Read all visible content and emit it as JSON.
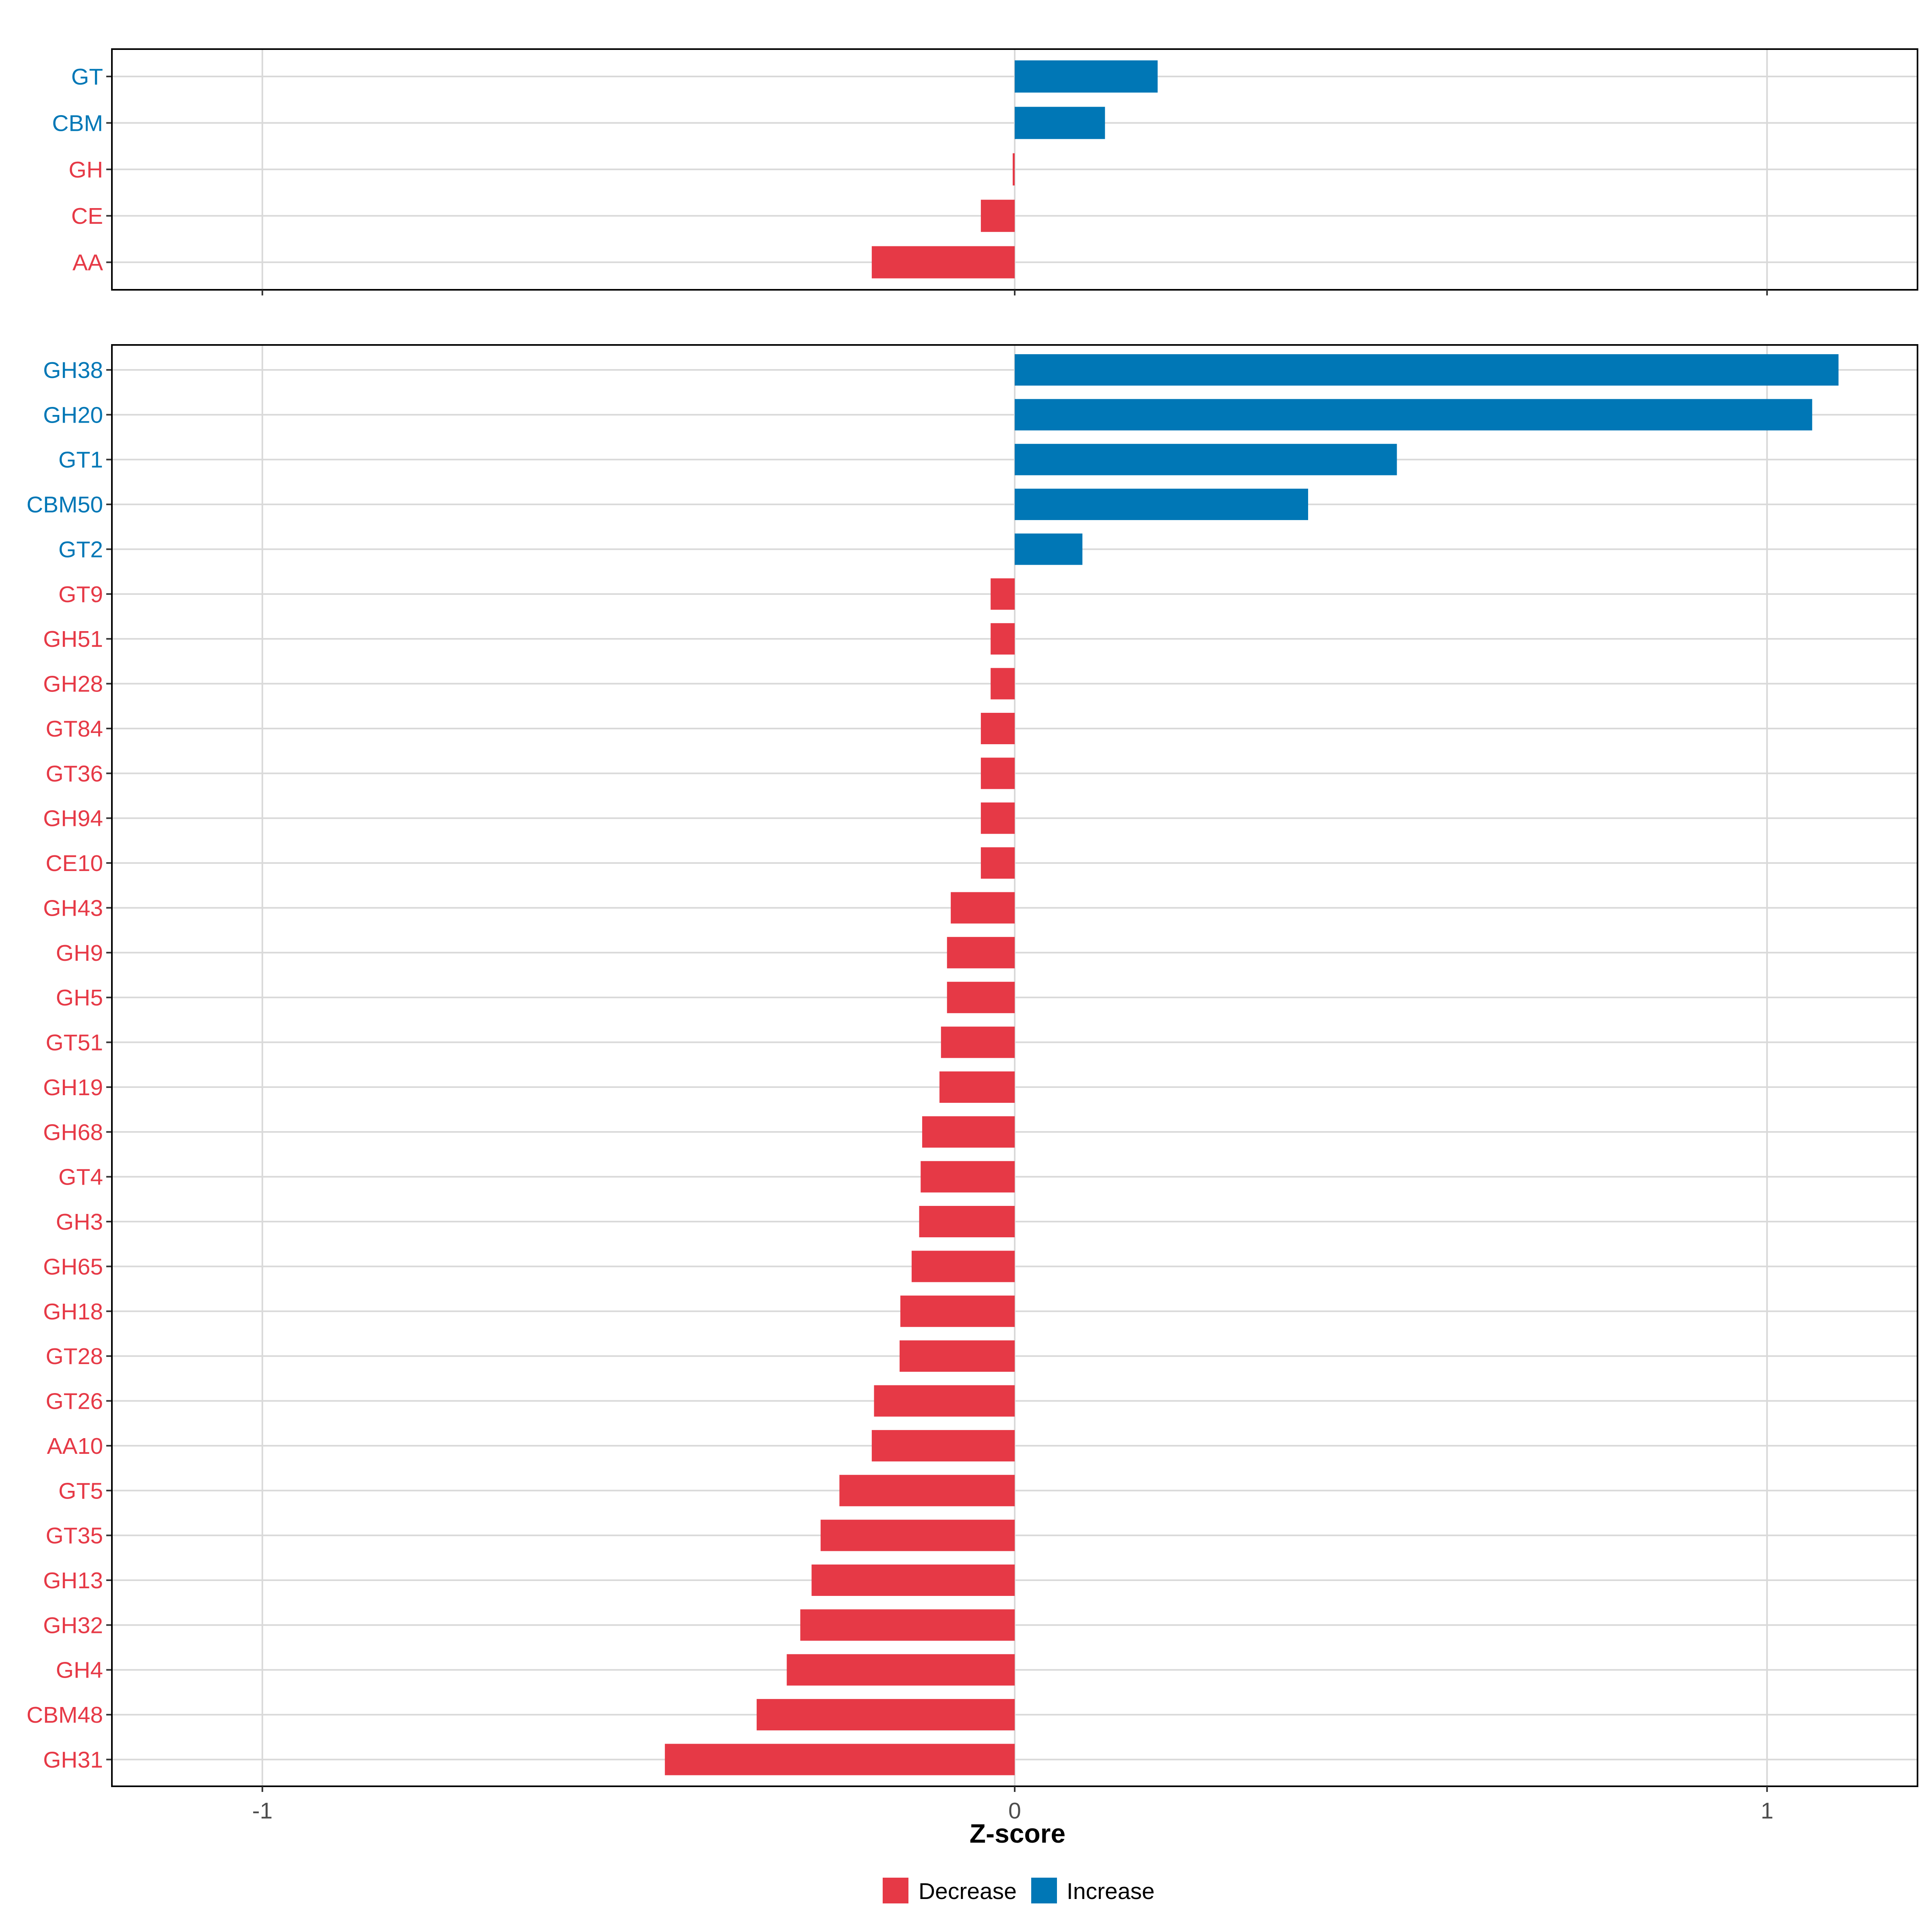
{
  "chart_data": [
    {
      "type": "bar",
      "orientation": "horizontal",
      "panel": "top",
      "categories": [
        "GT",
        "CBM",
        "GH",
        "CE",
        "AA"
      ],
      "values": [
        0.19,
        0.12,
        -0.002,
        -0.045,
        -0.19
      ],
      "xlim": [
        -1.2,
        1.2
      ]
    },
    {
      "type": "bar",
      "orientation": "horizontal",
      "panel": "bottom",
      "categories": [
        "GH38",
        "GH20",
        "GT1",
        "CBM50",
        "GT2",
        "GT9",
        "GH51",
        "GH28",
        "GT84",
        "GT36",
        "GH94",
        "CE10",
        "GH43",
        "GH9",
        "GH5",
        "GT51",
        "GH19",
        "GH68",
        "GT4",
        "GH3",
        "GH65",
        "GH18",
        "GT28",
        "GT26",
        "AA10",
        "GT5",
        "GT35",
        "GH13",
        "GH32",
        "GH4",
        "CBM48",
        "GH31"
      ],
      "values": [
        1.095,
        1.06,
        0.508,
        0.39,
        0.09,
        -0.032,
        -0.032,
        -0.032,
        -0.045,
        -0.045,
        -0.045,
        -0.045,
        -0.085,
        -0.09,
        -0.09,
        -0.098,
        -0.1,
        -0.123,
        -0.125,
        -0.127,
        -0.137,
        -0.152,
        -0.153,
        -0.187,
        -0.19,
        -0.233,
        -0.258,
        -0.27,
        -0.285,
        -0.303,
        -0.343,
        -0.465
      ],
      "xlim": [
        -1.2,
        1.2
      ],
      "xticks": [
        -1,
        0,
        1
      ],
      "xtick_labels": [
        "-1",
        "0",
        "1"
      ],
      "xlabel": "Z-score"
    }
  ],
  "legend": {
    "items": [
      {
        "label": "Decrease",
        "color": "#e63946"
      },
      {
        "label": "Increase",
        "color": "#0077b6"
      }
    ],
    "position": "bottom"
  },
  "colors": {
    "decrease": "#e63946",
    "increase": "#0077b6",
    "grid": "#d9d9d9",
    "panel_border": "#000000"
  }
}
